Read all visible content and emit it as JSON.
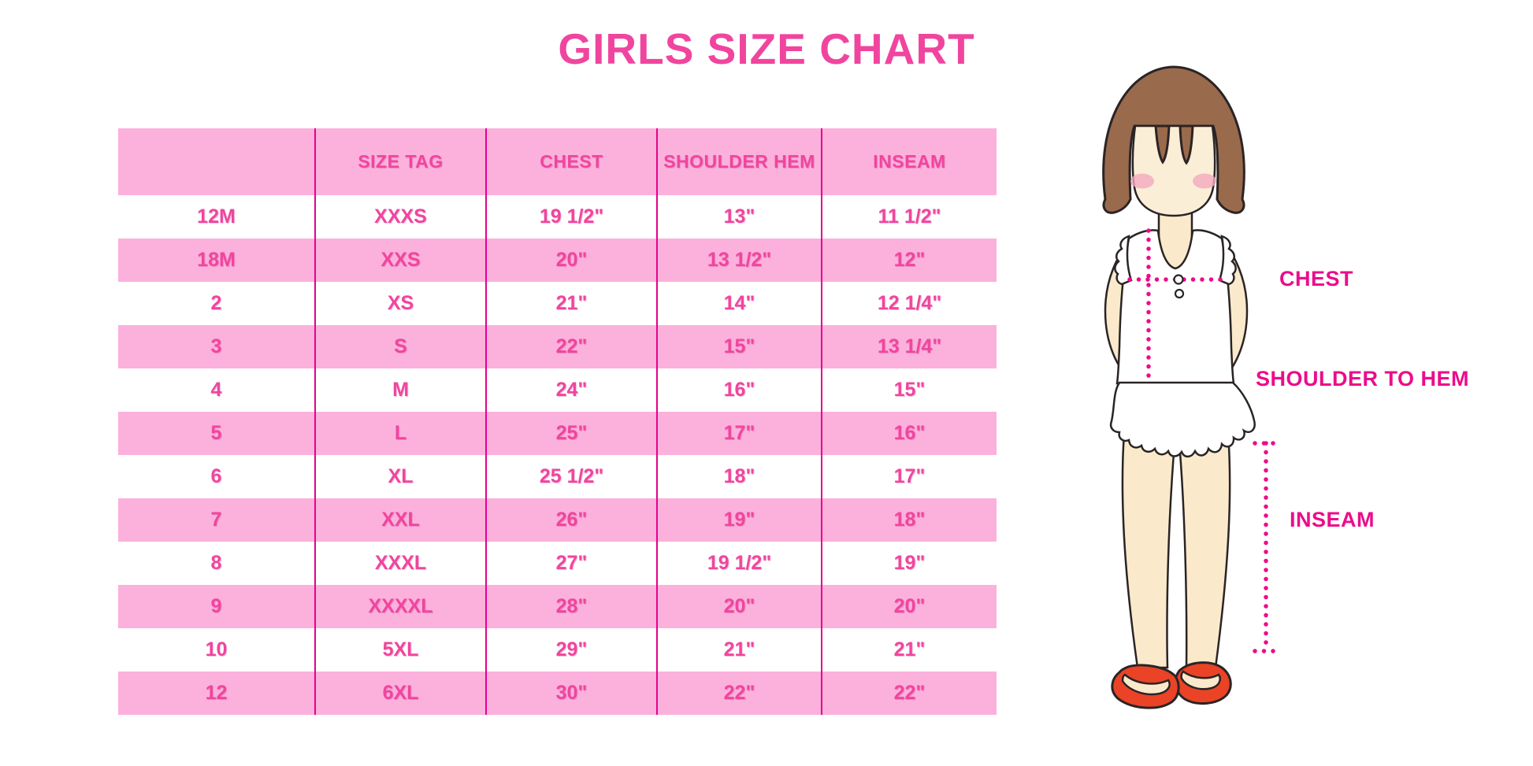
{
  "title": "GIRLS SIZE CHART",
  "chart_data": {
    "type": "table",
    "title": "GIRLS SIZE CHART",
    "columns": [
      "",
      "SIZE TAG",
      "CHEST",
      "SHOULDER HEM",
      "INSEAM"
    ],
    "rows": [
      [
        "12M",
        "XXXS",
        "19 1/2\"",
        "13\"",
        "11 1/2\""
      ],
      [
        "18M",
        "XXS",
        "20\"",
        "13 1/2\"",
        "12\""
      ],
      [
        "2",
        "XS",
        "21\"",
        "14\"",
        "12 1/4\""
      ],
      [
        "3",
        "S",
        "22\"",
        "15\"",
        "13 1/4\""
      ],
      [
        "4",
        "M",
        "24\"",
        "16\"",
        "15\""
      ],
      [
        "5",
        "L",
        "25\"",
        "17\"",
        "16\""
      ],
      [
        "6",
        "XL",
        "25 1/2\"",
        "18\"",
        "17\""
      ],
      [
        "7",
        "XXL",
        "26\"",
        "19\"",
        "18\""
      ],
      [
        "8",
        "XXXL",
        "27\"",
        "19 1/2\"",
        "19\""
      ],
      [
        "9",
        "XXXXL",
        "28\"",
        "20\"",
        "20\""
      ],
      [
        "10",
        "5XL",
        "29\"",
        "21\"",
        "21\""
      ],
      [
        "12",
        "6XL",
        "30\"",
        "22\"",
        "22\""
      ]
    ],
    "layout": {
      "stripe_rows": "alternating pink/white",
      "grid": "vertical magenta dividers only"
    }
  },
  "diagram": {
    "labels": {
      "chest": "CHEST",
      "shoulder_to_hem": "SHOULDER TO HEM",
      "inseam": "INSEAM"
    }
  },
  "colors": {
    "accent_pink": "#F0459E",
    "stripe_pink": "#FBB1DC",
    "divider_magenta": "#E6008C",
    "label_magenta": "#EC0C8B",
    "hair_brown": "#9A6A4C",
    "skin": "#FAEACB",
    "shoe_red": "#EA4326"
  }
}
